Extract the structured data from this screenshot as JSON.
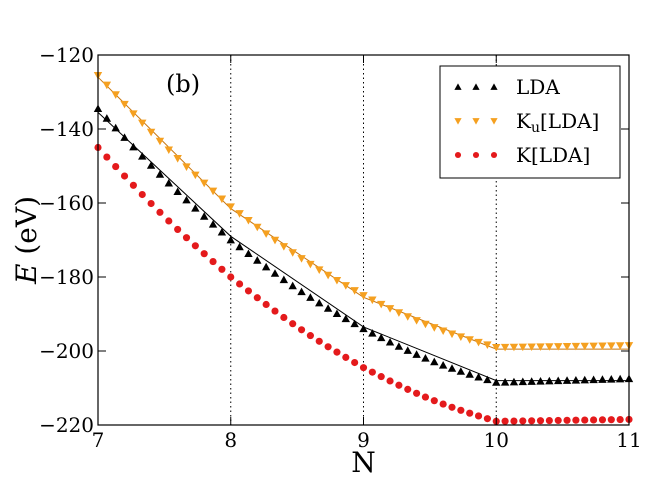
{
  "chart_data": {
    "type": "scatter",
    "title": "",
    "panel_label": "(b)",
    "xlabel": "N",
    "ylabel_italic": "E",
    "ylabel_rest": " (eV)",
    "xlim": [
      7,
      11
    ],
    "ylim": [
      -220,
      -120
    ],
    "xticks": [
      7,
      8,
      9,
      10,
      11
    ],
    "yticks": [
      -220,
      -200,
      -180,
      -160,
      -140,
      -120
    ],
    "ytick_labels": [
      "−220",
      "−200",
      "−180",
      "−160",
      "−140",
      "−120"
    ],
    "xtick_labels": [
      "7",
      "8",
      "9",
      "10",
      "11"
    ],
    "vlines": [
      8,
      9,
      10
    ],
    "legend_position": "top-right",
    "colors": {
      "lda": "#000000",
      "ku": "#f5a020",
      "k": "#e41a1c",
      "line_dark": "#000000",
      "line_orange": "#c8760e"
    },
    "exact_lines": [
      {
        "name": "lda-exact",
        "color": "#000000",
        "x": [
          7,
          8,
          9,
          10,
          11
        ],
        "y": [
          -135.5,
          -169,
          -193.5,
          -208,
          -208
        ]
      },
      {
        "name": "ku-exact",
        "color": "#c8760e",
        "x": [
          7,
          8,
          9,
          10,
          11
        ],
        "y": [
          -126,
          -161.5,
          -185.5,
          -199.5,
          -199.5
        ]
      }
    ],
    "series": [
      {
        "name": "LDA",
        "marker": "triangle-up",
        "color": "#000000",
        "x_start": 7,
        "x_end": 11,
        "count": 61,
        "knots_x": [
          7,
          8,
          9,
          10,
          11
        ],
        "knots_y": [
          -134.5,
          -170,
          -194,
          -208.5,
          -207.5
        ]
      },
      {
        "name": "Ku[LDA]",
        "label_main": "K",
        "label_sub": "u",
        "label_rest": "[LDA]",
        "marker": "triangle-down",
        "color": "#f5a020",
        "x_start": 7,
        "x_end": 11,
        "count": 61,
        "knots_x": [
          7,
          8,
          9,
          10,
          11
        ],
        "knots_y": [
          -125.5,
          -161,
          -185,
          -199,
          -198.5
        ]
      },
      {
        "name": "K[LDA]",
        "marker": "circle",
        "color": "#e41a1c",
        "x_start": 7,
        "x_end": 11,
        "count": 61,
        "knots_x": [
          7,
          8,
          9,
          10,
          11
        ],
        "knots_y": [
          -145,
          -180,
          -204.5,
          -219,
          -218.5
        ]
      }
    ]
  }
}
